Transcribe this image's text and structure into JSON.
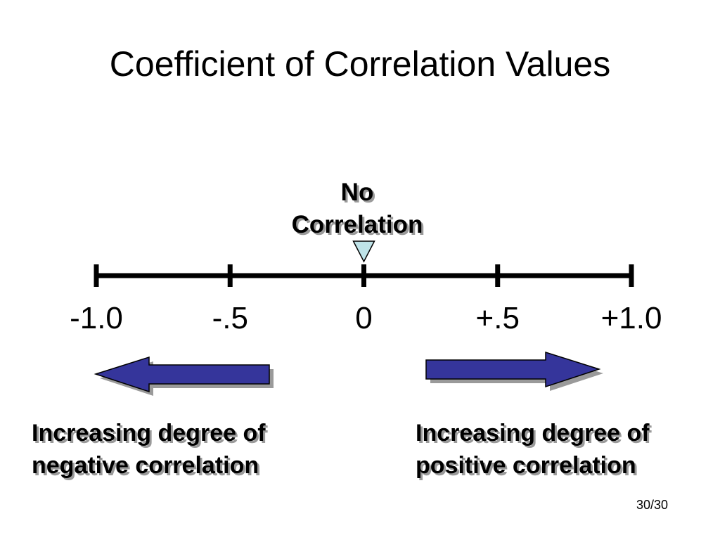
{
  "title": "Coefficient of Correlation Values",
  "marker": {
    "label_line1": "No",
    "label_line2": "Correlation",
    "value": 0
  },
  "scale": {
    "range": [
      -1.0,
      1.0
    ],
    "ticks": [
      {
        "value": -1.0,
        "label": "-1.0"
      },
      {
        "value": -0.5,
        "label": "-.5"
      },
      {
        "value": 0,
        "label": "0"
      },
      {
        "value": 0.5,
        "label": "+.5"
      },
      {
        "value": 1.0,
        "label": "+1.0"
      }
    ]
  },
  "captions": {
    "negative": {
      "line1": "Increasing degree of",
      "line2": "negative correlation",
      "direction": "left"
    },
    "positive": {
      "line1": "Increasing degree of",
      "line2": "positive correlation",
      "direction": "right"
    }
  },
  "colors": {
    "arrow_fill": "#35359b",
    "arrow_shadow": "#9a9a9a",
    "marker_fill": "#bfe3e8",
    "line": "#000000"
  },
  "slide_number": "30/30"
}
